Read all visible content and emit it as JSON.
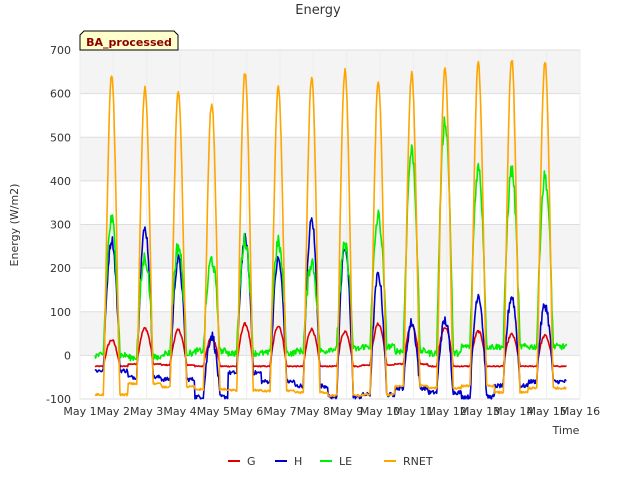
{
  "chart_data": {
    "type": "line",
    "title": "Energy",
    "xlabel": "Time",
    "ylabel": "Energy (W/m2)",
    "badge": "BA_processed",
    "x_ticks": [
      "May 1",
      "May 2",
      "May 3",
      "May 4",
      "May 5",
      "May 6",
      "May 7",
      "May 8",
      "May 9",
      "May 10",
      "May 11",
      "May 12",
      "May 13",
      "May 14",
      "May 15",
      "May 16"
    ],
    "xlim": [
      0,
      15
    ],
    "ylim": [
      -100,
      700
    ],
    "y_ticks": [
      -100,
      0,
      100,
      200,
      300,
      400,
      500,
      600,
      700
    ],
    "grid": true,
    "legend_position": "bottom-center",
    "series": [
      {
        "name": "G",
        "color": "#dd0000",
        "daily_peak": [
          35,
          62,
          58,
          40,
          72,
          68,
          60,
          55,
          72,
          70,
          65,
          55,
          48,
          45
        ],
        "daily_min": [
          -25,
          -20,
          -22,
          -25,
          -25,
          -25,
          -25,
          -25,
          -22,
          -20,
          -25,
          -25,
          -25,
          -25
        ]
      },
      {
        "name": "H",
        "color": "#0000cc",
        "daily_peak": [
          265,
          290,
          220,
          45,
          268,
          220,
          310,
          245,
          185,
          75,
          80,
          140,
          135,
          115
        ],
        "daily_min": [
          -35,
          -50,
          -55,
          -95,
          -40,
          -60,
          -70,
          -95,
          -90,
          -75,
          -85,
          -95,
          -70,
          -60
        ]
      },
      {
        "name": "LE",
        "color": "#00ee00",
        "daily_peak": [
          310,
          225,
          250,
          220,
          265,
          258,
          215,
          250,
          318,
          470,
          538,
          430,
          425,
          410
        ],
        "daily_min": [
          0,
          -5,
          5,
          10,
          5,
          5,
          10,
          15,
          20,
          10,
          5,
          20,
          20,
          20
        ]
      },
      {
        "name": "RNET",
        "color": "#ffa500",
        "daily_peak": [
          640,
          612,
          605,
          578,
          648,
          612,
          638,
          652,
          628,
          645,
          658,
          668,
          678,
          672
        ],
        "daily_min": [
          -90,
          -65,
          -72,
          -78,
          -80,
          -82,
          -85,
          -92,
          -90,
          -70,
          -75,
          -70,
          -85,
          -75
        ]
      }
    ]
  }
}
